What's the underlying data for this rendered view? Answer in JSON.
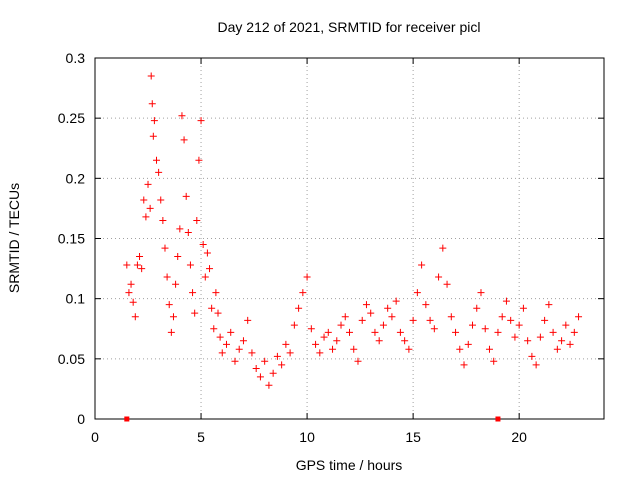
{
  "chart_data": {
    "type": "scatter",
    "title": "Day 212 of 2021, SRMTID for receiver picl",
    "xlabel": "GPS time / hours",
    "ylabel": "SRMTID / TECUs",
    "xlim": [
      0,
      24
    ],
    "ylim": [
      0,
      0.3
    ],
    "xticks": [
      "0",
      "5",
      "10",
      "15",
      "20"
    ],
    "yticks": [
      "0",
      "0.05",
      "0.1",
      "0.15",
      "0.2",
      "0.25",
      "0.3"
    ],
    "grid": true,
    "marker": "+",
    "color": "#ff0000",
    "series": [
      {
        "points": [
          [
            1.5,
            0.128
          ],
          [
            1.6,
            0.105
          ],
          [
            1.7,
            0.112
          ],
          [
            1.8,
            0.097
          ],
          [
            1.9,
            0.085
          ],
          [
            2.0,
            0.128
          ],
          [
            2.1,
            0.135
          ],
          [
            2.2,
            0.125
          ],
          [
            2.3,
            0.182
          ],
          [
            2.4,
            0.168
          ],
          [
            2.5,
            0.195
          ],
          [
            2.6,
            0.175
          ],
          [
            2.65,
            0.285
          ],
          [
            2.7,
            0.262
          ],
          [
            2.75,
            0.235
          ],
          [
            2.8,
            0.248
          ],
          [
            2.9,
            0.215
          ],
          [
            3.0,
            0.205
          ],
          [
            3.1,
            0.182
          ],
          [
            3.2,
            0.165
          ],
          [
            3.3,
            0.142
          ],
          [
            3.4,
            0.118
          ],
          [
            3.5,
            0.095
          ],
          [
            3.6,
            0.072
          ],
          [
            3.7,
            0.085
          ],
          [
            3.8,
            0.112
          ],
          [
            3.9,
            0.135
          ],
          [
            4.0,
            0.158
          ],
          [
            4.1,
            0.252
          ],
          [
            4.2,
            0.232
          ],
          [
            4.3,
            0.185
          ],
          [
            4.4,
            0.155
          ],
          [
            4.5,
            0.128
          ],
          [
            4.6,
            0.105
          ],
          [
            4.7,
            0.088
          ],
          [
            4.8,
            0.165
          ],
          [
            4.9,
            0.215
          ],
          [
            5.0,
            0.248
          ],
          [
            5.1,
            0.145
          ],
          [
            5.2,
            0.118
          ],
          [
            5.3,
            0.138
          ],
          [
            5.4,
            0.125
          ],
          [
            5.5,
            0.092
          ],
          [
            5.6,
            0.075
          ],
          [
            5.7,
            0.105
          ],
          [
            5.8,
            0.088
          ],
          [
            5.9,
            0.068
          ],
          [
            6.0,
            0.055
          ],
          [
            6.2,
            0.062
          ],
          [
            6.4,
            0.072
          ],
          [
            6.6,
            0.048
          ],
          [
            6.8,
            0.058
          ],
          [
            7.0,
            0.065
          ],
          [
            7.2,
            0.082
          ],
          [
            7.4,
            0.055
          ],
          [
            7.6,
            0.042
          ],
          [
            7.8,
            0.035
          ],
          [
            8.0,
            0.048
          ],
          [
            8.2,
            0.028
          ],
          [
            8.4,
            0.038
          ],
          [
            8.6,
            0.052
          ],
          [
            8.8,
            0.045
          ],
          [
            9.0,
            0.062
          ],
          [
            9.2,
            0.055
          ],
          [
            9.4,
            0.078
          ],
          [
            9.6,
            0.092
          ],
          [
            9.8,
            0.105
          ],
          [
            10.0,
            0.118
          ],
          [
            10.2,
            0.075
          ],
          [
            10.4,
            0.062
          ],
          [
            10.6,
            0.055
          ],
          [
            10.8,
            0.068
          ],
          [
            11.0,
            0.072
          ],
          [
            11.2,
            0.058
          ],
          [
            11.4,
            0.065
          ],
          [
            11.6,
            0.078
          ],
          [
            11.8,
            0.085
          ],
          [
            12.0,
            0.072
          ],
          [
            12.2,
            0.058
          ],
          [
            12.4,
            0.048
          ],
          [
            12.6,
            0.082
          ],
          [
            12.8,
            0.095
          ],
          [
            13.0,
            0.088
          ],
          [
            13.2,
            0.072
          ],
          [
            13.4,
            0.065
          ],
          [
            13.6,
            0.078
          ],
          [
            13.8,
            0.092
          ],
          [
            14.0,
            0.085
          ],
          [
            14.2,
            0.098
          ],
          [
            14.4,
            0.072
          ],
          [
            14.6,
            0.065
          ],
          [
            14.8,
            0.058
          ],
          [
            15.0,
            0.082
          ],
          [
            15.2,
            0.105
          ],
          [
            15.4,
            0.128
          ],
          [
            15.6,
            0.095
          ],
          [
            15.8,
            0.082
          ],
          [
            16.0,
            0.075
          ],
          [
            16.2,
            0.118
          ],
          [
            16.4,
            0.142
          ],
          [
            16.6,
            0.112
          ],
          [
            16.8,
            0.085
          ],
          [
            17.0,
            0.072
          ],
          [
            17.2,
            0.058
          ],
          [
            17.4,
            0.045
          ],
          [
            17.6,
            0.062
          ],
          [
            17.8,
            0.078
          ],
          [
            18.0,
            0.092
          ],
          [
            18.2,
            0.105
          ],
          [
            18.4,
            0.075
          ],
          [
            18.6,
            0.058
          ],
          [
            18.8,
            0.048
          ],
          [
            19.0,
            0.072
          ],
          [
            19.2,
            0.085
          ],
          [
            19.4,
            0.098
          ],
          [
            19.6,
            0.082
          ],
          [
            19.8,
            0.068
          ],
          [
            20.0,
            0.078
          ],
          [
            20.2,
            0.092
          ],
          [
            20.4,
            0.065
          ],
          [
            20.6,
            0.052
          ],
          [
            20.8,
            0.045
          ],
          [
            21.0,
            0.068
          ],
          [
            21.2,
            0.082
          ],
          [
            21.4,
            0.095
          ],
          [
            21.6,
            0.072
          ],
          [
            21.8,
            0.058
          ],
          [
            22.0,
            0.065
          ],
          [
            22.2,
            0.078
          ],
          [
            22.4,
            0.062
          ],
          [
            22.6,
            0.072
          ],
          [
            22.8,
            0.085
          ]
        ]
      }
    ],
    "axis_markers_x": [
      1.5,
      19
    ]
  }
}
